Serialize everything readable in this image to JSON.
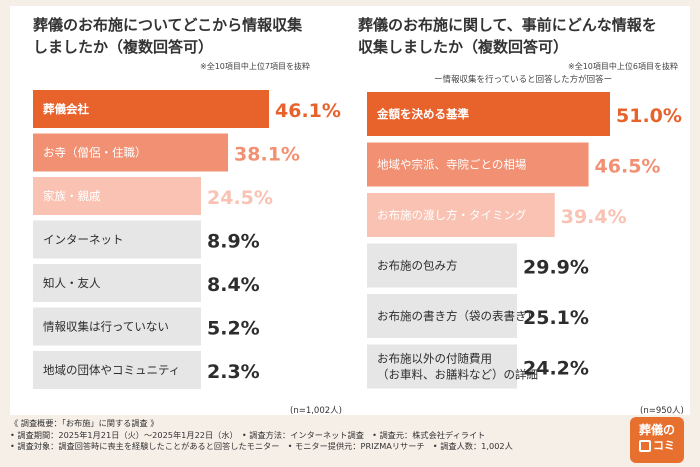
{
  "colors": {
    "accent_dark": "#e8622c",
    "accent_mid": "#f19073",
    "accent_light": "#f9c2b2",
    "gray_bar": "#e6e6e6",
    "gray_text": "#2d2d2d"
  },
  "chart_data": [
    {
      "type": "bar",
      "orientation": "horizontal",
      "title": "葬儀のお布施についてどこから情報収集\nしましたか（複数回答可）",
      "note": "※全10項目中上位7項目を抜粋",
      "sample": "(n=1,002人)",
      "categories": [
        "葬儀会社",
        "お寺（僧侶・住職）",
        "家族・親戚",
        "インターネット",
        "知人・友人",
        "情報収集は行っていない",
        "地域の団体やコミュニティ"
      ],
      "values": [
        46.1,
        38.1,
        24.5,
        8.9,
        8.4,
        5.2,
        2.3
      ],
      "value_labels": [
        "46.1%",
        "38.1%",
        "24.5%",
        "8.9%",
        "8.4%",
        "5.2%",
        "2.3%"
      ],
      "xlim": [
        0,
        46.1
      ]
    },
    {
      "type": "bar",
      "orientation": "horizontal",
      "title": "葬儀のお布施に関して、事前にどんな情報を\n収集しましたか（複数回答可）",
      "note": "※全10項目中上位6項目を抜粋",
      "subhead": "ー情報収集を行っていると回答した方が回答ー",
      "sample": "(n=950人)",
      "categories": [
        "金額を決める基準",
        "地域や宗派、寺院ごとの相場",
        "お布施の渡し方・タイミング",
        "お布施の包み方",
        "お布施の書き方（袋の表書き）",
        "お布施以外の付随費用\n（お車料、お膳料など）の詳細"
      ],
      "values": [
        51.0,
        46.5,
        39.4,
        29.9,
        25.1,
        24.2
      ],
      "value_labels": [
        "51.0%",
        "46.5%",
        "39.4%",
        "29.9%",
        "25.1%",
        "24.2%"
      ],
      "xlim": [
        0,
        51.0
      ]
    }
  ],
  "footer": {
    "heading": "《 調査概要：「お布施」に関する調査 》",
    "line1": "• 調査期間：2025年1月21日（火）～2025年1月22日（水）　• 調査方法：インターネット調査　• 調査元：株式会社ディライト",
    "line2": "• 調査対象：調査回答時に喪主を経験したことがあると回答したモニター　• モニター提供元：PRIZMAリサーチ　• 調査人数：1,002人"
  },
  "logo": {
    "line1": "葬儀の",
    "line2": "コミ"
  }
}
